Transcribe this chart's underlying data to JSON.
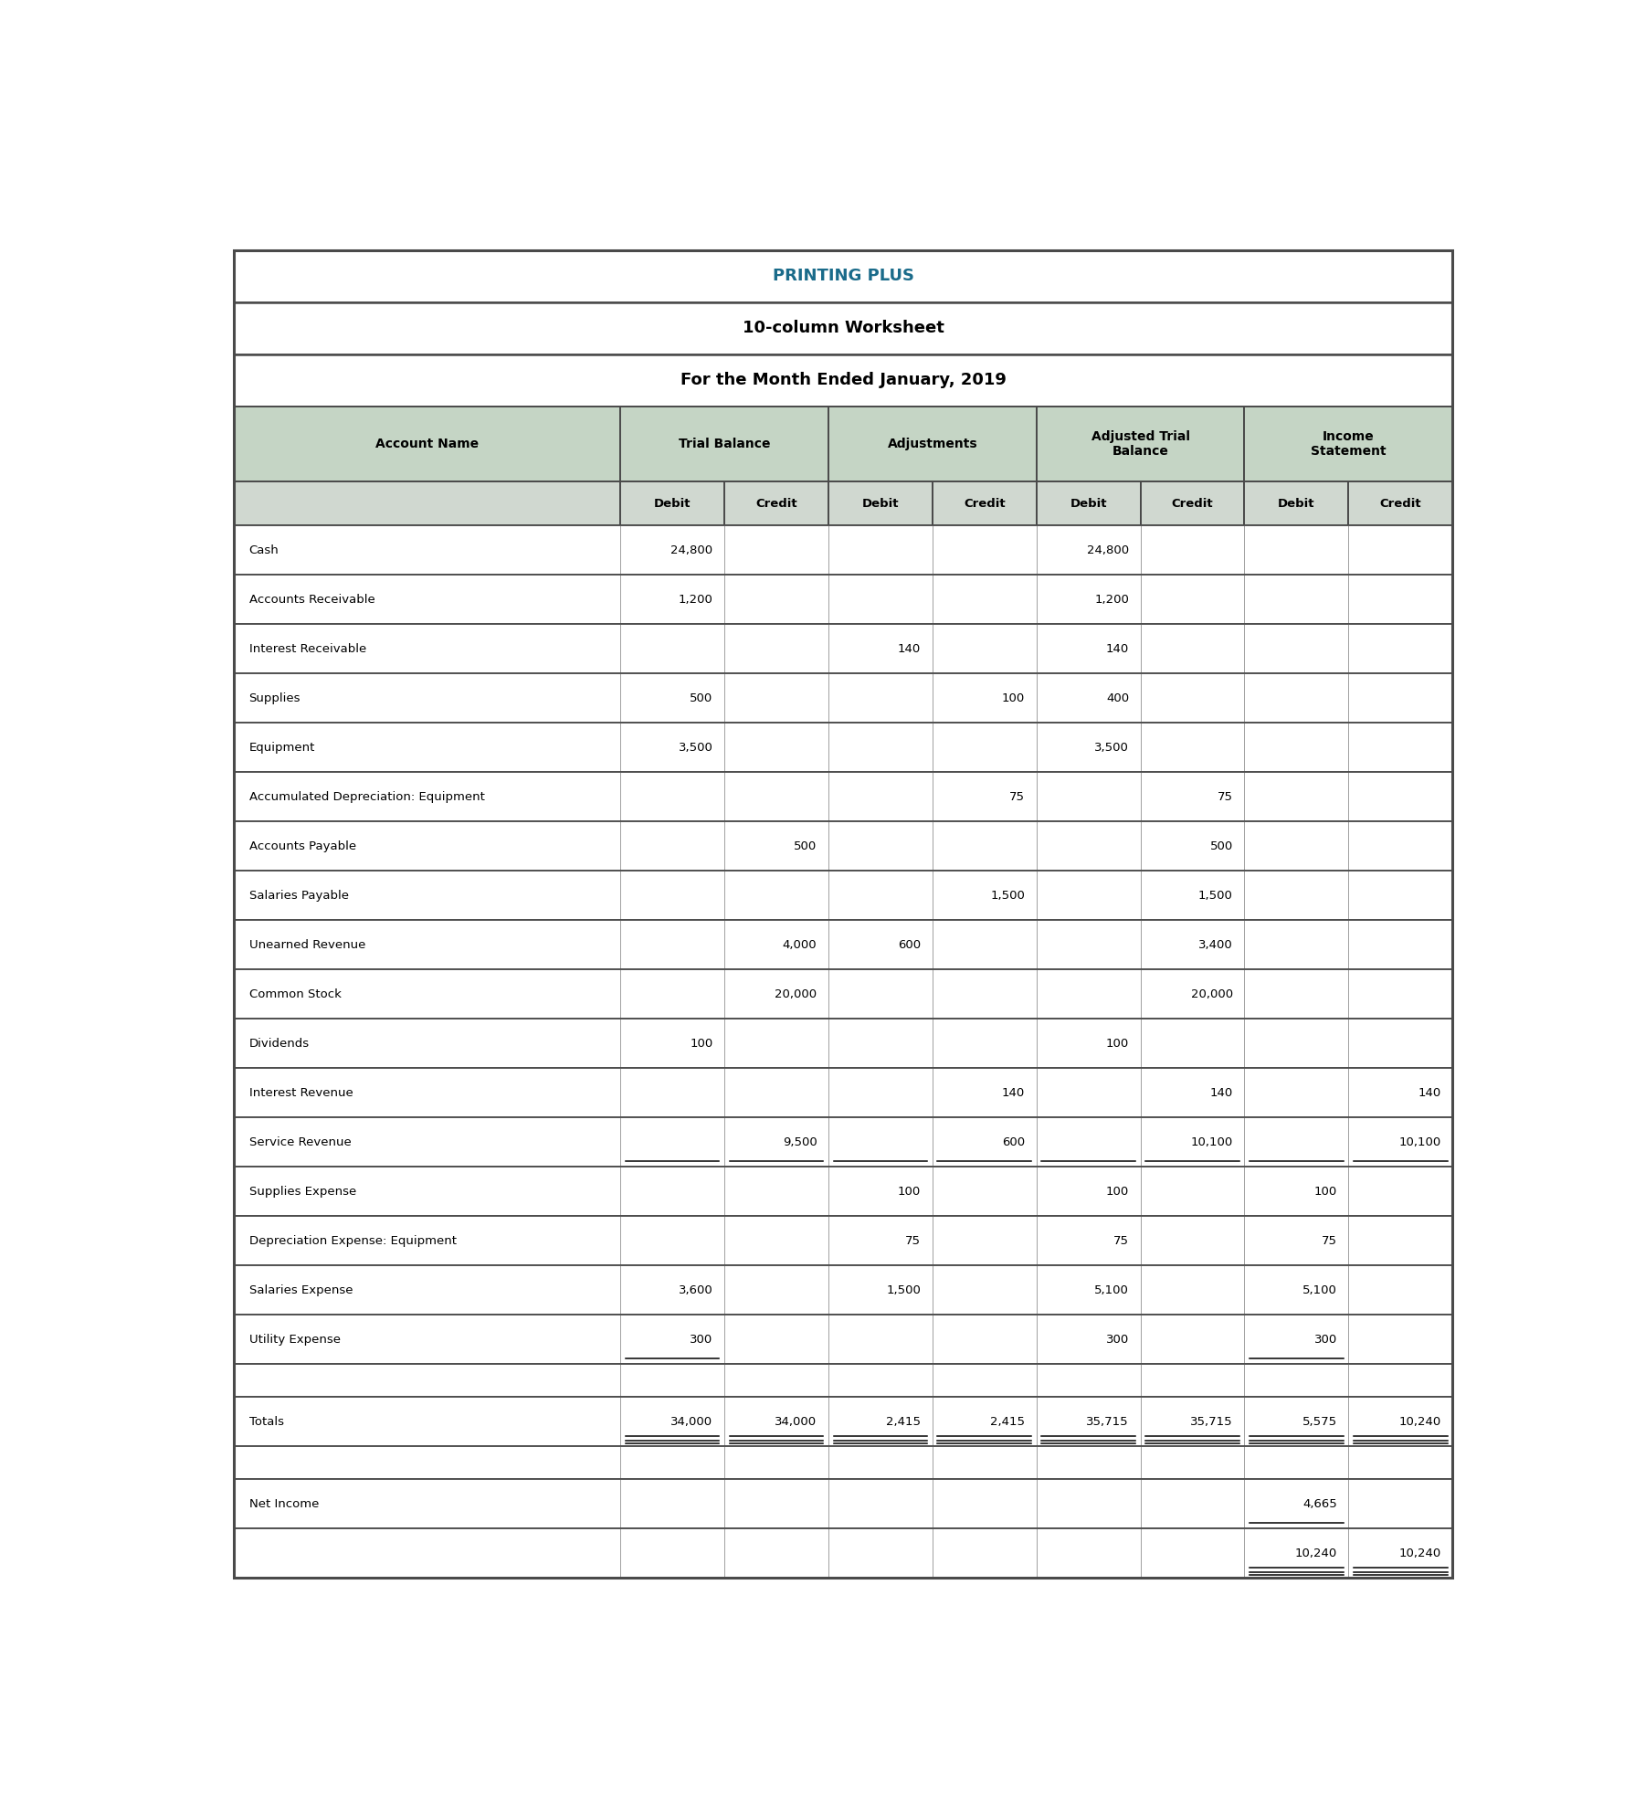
{
  "title1": "PRINTING PLUS",
  "title2": "10-column Worksheet",
  "title3": "For the Month Ended January, 2019",
  "title1_color": "#1a6b8a",
  "col_headers_row2": [
    "",
    "Debit",
    "Credit",
    "Debit",
    "Credit",
    "Debit",
    "Credit",
    "Debit",
    "Credit"
  ],
  "rows": [
    [
      "Cash",
      "24,800",
      "",
      "",
      "",
      "24,800",
      "",
      "",
      ""
    ],
    [
      "Accounts Receivable",
      "1,200",
      "",
      "",
      "",
      "1,200",
      "",
      "",
      ""
    ],
    [
      "Interest Receivable",
      "",
      "",
      "140",
      "",
      "140",
      "",
      "",
      ""
    ],
    [
      "Supplies",
      "500",
      "",
      "",
      "100",
      "400",
      "",
      "",
      ""
    ],
    [
      "Equipment",
      "3,500",
      "",
      "",
      "",
      "3,500",
      "",
      "",
      ""
    ],
    [
      "Accumulated Depreciation: Equipment",
      "",
      "",
      "",
      "75",
      "",
      "75",
      "",
      ""
    ],
    [
      "Accounts Payable",
      "",
      "500",
      "",
      "",
      "",
      "500",
      "",
      ""
    ],
    [
      "Salaries Payable",
      "",
      "",
      "",
      "1,500",
      "",
      "1,500",
      "",
      ""
    ],
    [
      "Unearned Revenue",
      "",
      "4,000",
      "600",
      "",
      "",
      "3,400",
      "",
      ""
    ],
    [
      "Common Stock",
      "",
      "20,000",
      "",
      "",
      "",
      "20,000",
      "",
      ""
    ],
    [
      "Dividends",
      "100",
      "",
      "",
      "",
      "100",
      "",
      "",
      ""
    ],
    [
      "Interest Revenue",
      "",
      "",
      "",
      "140",
      "",
      "140",
      "",
      "140"
    ],
    [
      "Service Revenue",
      "",
      "9,500",
      "",
      "600",
      "",
      "10,100",
      "",
      "10,100"
    ],
    [
      "Supplies Expense",
      "",
      "",
      "100",
      "",
      "100",
      "",
      "100",
      ""
    ],
    [
      "Depreciation Expense: Equipment",
      "",
      "",
      "75",
      "",
      "75",
      "",
      "75",
      ""
    ],
    [
      "Salaries Expense",
      "3,600",
      "",
      "1,500",
      "",
      "5,100",
      "",
      "5,100",
      ""
    ],
    [
      "Utility Expense",
      "300",
      "",
      "",
      "",
      "300",
      "",
      "300",
      ""
    ],
    [
      "",
      "",
      "",
      "",
      "",
      "",
      "",
      "",
      ""
    ],
    [
      "Totals",
      "34,000",
      "34,000",
      "2,415",
      "2,415",
      "35,715",
      "35,715",
      "5,575",
      "10,240"
    ],
    [
      "",
      "",
      "",
      "",
      "",
      "",
      "",
      "",
      ""
    ],
    [
      "Net Income",
      "",
      "",
      "",
      "",
      "",
      "",
      "4,665",
      ""
    ],
    [
      "",
      "",
      "",
      "",
      "",
      "",
      "",
      "10,240",
      "10,240"
    ]
  ],
  "underline_rows": {
    "12": [
      1,
      2,
      3,
      4,
      5,
      6,
      7,
      8
    ],
    "16": [
      1,
      7
    ],
    "18": [
      1,
      2,
      3,
      4,
      5,
      6,
      7,
      8
    ],
    "20": [
      7
    ],
    "21": [
      7,
      8
    ]
  },
  "double_underline_rows": {
    "18": [
      1,
      2,
      3,
      4,
      5,
      6,
      7,
      8
    ],
    "21": [
      7,
      8
    ]
  },
  "header_bg": "#c5d5c5",
  "subheader_bg": "#d0d8d0",
  "outer_border_color": "#4a4a4a",
  "inner_border_color": "#999999",
  "figsize": [
    18.01,
    19.66
  ],
  "dpi": 100
}
